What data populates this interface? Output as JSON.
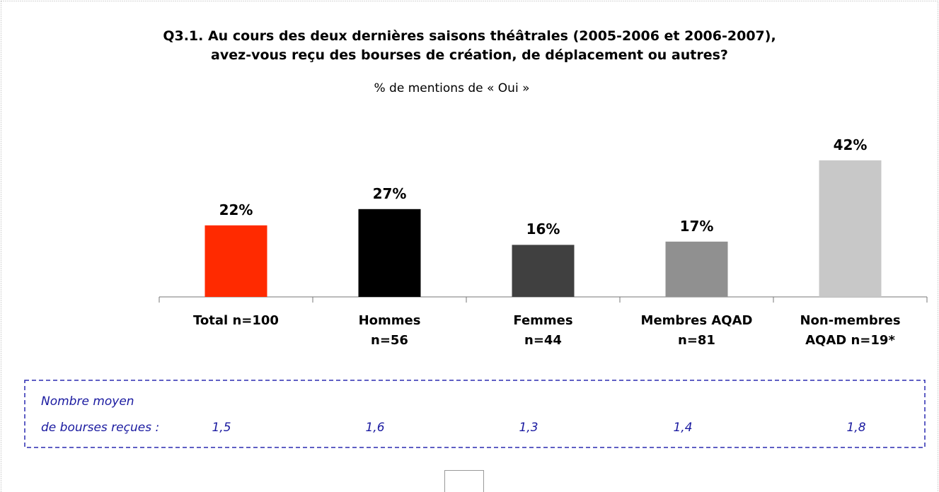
{
  "chart_data": {
    "type": "bar",
    "title": "Q3.1. Au cours des deux dernières saisons théâtrales (2005-2006 et 2006-2007),\navez-vous reçu des bourses de création, de déplacement ou autres?",
    "subtitle": "% de mentions de « Oui »",
    "categories": [
      "Total n=100",
      "Hommes\nn=56",
      "Femmes\nn=44",
      "Membres AQAD\nn=81",
      "Non-membres\nAQAD n=19*"
    ],
    "values": [
      22,
      27,
      16,
      17,
      42
    ],
    "value_labels": [
      "22%",
      "27%",
      "16%",
      "17%",
      "42%"
    ],
    "colors": [
      "#ff2a00",
      "#000000",
      "#404040",
      "#909090",
      "#c8c8c8"
    ],
    "ylim": [
      0,
      50
    ],
    "average_label": "Nombre moyen\nde bourses reçues :",
    "average_values": [
      1.5,
      1.6,
      1.3,
      1.4,
      1.8
    ],
    "average_value_labels": [
      "1,5",
      "1,6",
      "1,3",
      "1,4",
      "1,8"
    ]
  }
}
